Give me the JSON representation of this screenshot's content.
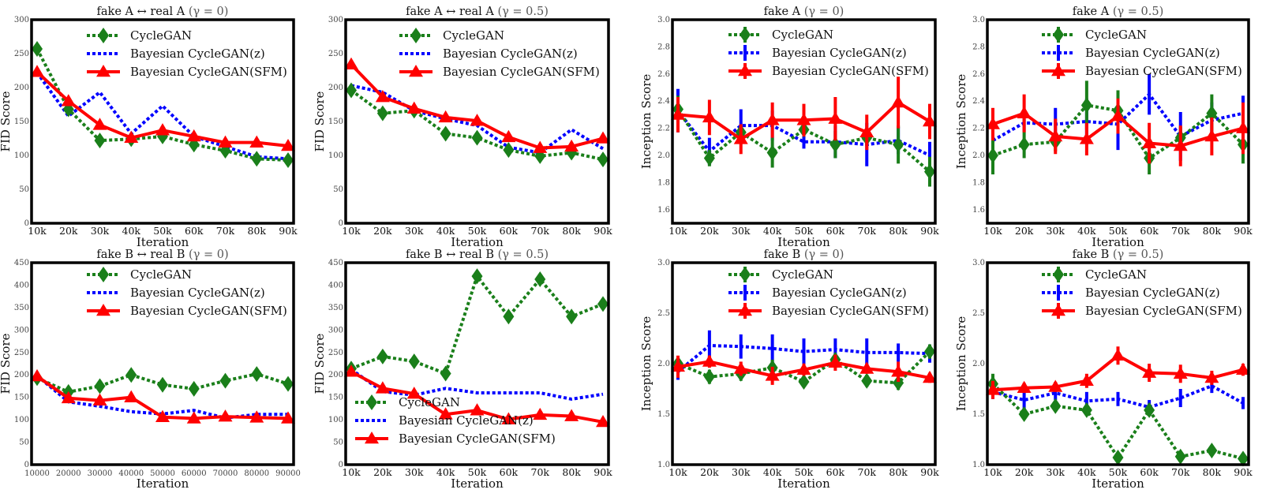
{
  "figure": {
    "series_styles": [
      {
        "name": "CycleGAN",
        "color": "#1a7f1a",
        "marker": "diamond",
        "line": "dotted"
      },
      {
        "name": "Bayesian CycleGAN(z)",
        "color": "#0000ff",
        "marker": "none",
        "line": "dotted"
      },
      {
        "name": "Bayesian CycleGAN(SFM)",
        "color": "#ff0000",
        "marker": "triangle",
        "line": "solid"
      }
    ]
  },
  "chart_data": [
    {
      "id": "fid-a-g0",
      "type": "line",
      "title": "fake A ↔ real A",
      "title_gamma": "(γ = 0)",
      "xlabel": "Iteration",
      "ylabel": "FID Score",
      "categories": [
        "10k",
        "20k",
        "30k",
        "40k",
        "50k",
        "60k",
        "70k",
        "80k",
        "90k"
      ],
      "ylim": [
        0,
        300
      ],
      "yticks": [
        0,
        50,
        100,
        150,
        200,
        250,
        300
      ],
      "ytick_labels": [
        "0",
        "50",
        "100",
        "150",
        "200",
        "250",
        "300"
      ],
      "legend": "top-right",
      "legend_labels": [
        "CycleGAN",
        "Bayesian CycleGAN(z)",
        "Bayesian CycleGAN(SFM)"
      ],
      "series": [
        {
          "name": "CycleGAN",
          "values": [
            257,
            168,
            122,
            124,
            128,
            116,
            107,
            95,
            93
          ]
        },
        {
          "name": "Bayesian CycleGAN(z)",
          "values": [
            222,
            158,
            193,
            132,
            173,
            128,
            113,
            98,
            95
          ]
        },
        {
          "name": "Bayesian CycleGAN(SFM)",
          "values": [
            223,
            180,
            145,
            126,
            137,
            128,
            119,
            119,
            114
          ]
        }
      ]
    },
    {
      "id": "fid-a-g05",
      "type": "line",
      "title": "fake A ↔ real A",
      "title_gamma": "(γ = 0.5)",
      "xlabel": "Iteration",
      "ylabel": "FID Score",
      "categories": [
        "10k",
        "20k",
        "30k",
        "40k",
        "50k",
        "60k",
        "70k",
        "80k",
        "90k"
      ],
      "ylim": [
        0,
        300
      ],
      "yticks": [
        0,
        50,
        100,
        150,
        200,
        250,
        300
      ],
      "ytick_labels": [
        "0",
        "50",
        "100",
        "150",
        "200",
        "250",
        "300"
      ],
      "legend": "top-right",
      "legend_labels": [
        "CycleGAN",
        "Bayesian CycleGAN(z)",
        "Bayesian CycleGAN(SFM)"
      ],
      "series": [
        {
          "name": "CycleGAN",
          "values": [
            196,
            162,
            166,
            132,
            126,
            108,
            99,
            104,
            94
          ]
        },
        {
          "name": "Bayesian CycleGAN(z)",
          "values": [
            203,
            193,
            166,
            154,
            144,
            112,
            104,
            138,
            110
          ]
        },
        {
          "name": "Bayesian CycleGAN(SFM)",
          "values": [
            234,
            186,
            169,
            156,
            151,
            127,
            111,
            113,
            125
          ]
        }
      ]
    },
    {
      "id": "is-a-g0",
      "type": "line",
      "title": "fake A",
      "title_gamma": "(γ = 0)",
      "xlabel": "Iteration",
      "ylabel": "Inception Score",
      "categories": [
        "10k",
        "20k",
        "30k",
        "40k",
        "50k",
        "60k",
        "70k",
        "80k",
        "90k"
      ],
      "ylim": [
        1.5,
        3.0
      ],
      "yticks": [
        1.6,
        1.8,
        2.0,
        2.2,
        2.4,
        2.6,
        2.8,
        3.0
      ],
      "ytick_labels": [
        "1.6",
        "1.8",
        "2.0",
        "2.2",
        "2.4",
        "2.6",
        "2.8",
        "3.0"
      ],
      "legend": "top-right",
      "legend_labels": [
        "CycleGAN",
        "Bayesian CycleGAN(z)",
        "Bayesian CycleGAN(SFM)"
      ],
      "series": [
        {
          "name": "CycleGAN",
          "values": [
            2.34,
            1.98,
            2.17,
            2.02,
            2.19,
            2.08,
            2.13,
            2.08,
            1.88
          ],
          "errors": [
            0.1,
            0.06,
            0.05,
            0.11,
            0.04,
            0.1,
            0.06,
            0.14,
            0.11
          ]
        },
        {
          "name": "Bayesian CycleGAN(z)",
          "values": [
            2.33,
            2.03,
            2.22,
            2.22,
            2.1,
            2.1,
            2.08,
            2.11,
            2.0
          ],
          "errors": [
            0.16,
            0.1,
            0.12,
            0.11,
            0.05,
            0.12,
            0.16,
            0.1,
            0.1
          ]
        },
        {
          "name": "Bayesian CycleGAN(SFM)",
          "values": [
            2.3,
            2.28,
            2.12,
            2.26,
            2.26,
            2.27,
            2.17,
            2.39,
            2.25
          ],
          "errors": [
            0.13,
            0.13,
            0.11,
            0.13,
            0.12,
            0.16,
            0.13,
            0.19,
            0.13
          ]
        }
      ]
    },
    {
      "id": "is-a-g05",
      "type": "line",
      "title": "fake A",
      "title_gamma": "(γ = 0.5)",
      "xlabel": "Iteration",
      "ylabel": "Inception Score",
      "categories": [
        "10k",
        "20k",
        "30k",
        "40k",
        "50k",
        "60k",
        "70k",
        "80k",
        "90k"
      ],
      "ylim": [
        1.5,
        3.0
      ],
      "yticks": [
        1.6,
        1.8,
        2.0,
        2.2,
        2.4,
        2.6,
        2.8,
        3.0
      ],
      "ytick_labels": [
        "1.6",
        "1.8",
        "2.0",
        "2.2",
        "2.4",
        "2.6",
        "2.8",
        "3.0"
      ],
      "legend": "top-right",
      "legend_labels": [
        "CycleGAN",
        "Bayesian CycleGAN(z)",
        "Bayesian CycleGAN(SFM)"
      ],
      "series": [
        {
          "name": "CycleGAN",
          "values": [
            2.0,
            2.08,
            2.1,
            2.37,
            2.33,
            1.98,
            2.13,
            2.31,
            2.08
          ],
          "errors": [
            0.14,
            0.1,
            0.07,
            0.18,
            0.15,
            0.12,
            0.08,
            0.14,
            0.14
          ]
        },
        {
          "name": "Bayesian CycleGAN(z)",
          "values": [
            2.11,
            2.24,
            2.23,
            2.25,
            2.23,
            2.45,
            2.14,
            2.26,
            2.31
          ],
          "errors": [
            0.11,
            0.06,
            0.12,
            0.17,
            0.19,
            0.15,
            0.18,
            0.13,
            0.13
          ]
        },
        {
          "name": "Bayesian CycleGAN(SFM)",
          "values": [
            2.23,
            2.31,
            2.14,
            2.12,
            2.29,
            2.09,
            2.07,
            2.14,
            2.2
          ],
          "errors": [
            0.12,
            0.14,
            0.13,
            0.12,
            0.13,
            0.15,
            0.15,
            0.14,
            0.19
          ]
        }
      ]
    },
    {
      "id": "fid-b-g0",
      "type": "line",
      "title": "fake B ↔ real B",
      "title_gamma": "(γ = 0)",
      "xlabel": "Iteration",
      "ylabel": "FID Score",
      "categories": [
        "10000",
        "20000",
        "30000",
        "40000",
        "50000",
        "60000",
        "70000",
        "80000",
        "90000"
      ],
      "ylim": [
        0,
        450
      ],
      "yticks": [
        0,
        50,
        100,
        150,
        200,
        250,
        300,
        350,
        400,
        450
      ],
      "ytick_labels": [
        "0",
        "50",
        "100",
        "150",
        "200",
        "250",
        "300",
        "350",
        "400",
        "450"
      ],
      "legend": "top-right",
      "legend_labels": [
        "CycleGAN",
        "Bayesian CycleGAN(z)",
        "Bayesian CycleGAN(SFM)"
      ],
      "series": [
        {
          "name": "CycleGAN",
          "values": [
            193,
            162,
            175,
            200,
            178,
            169,
            187,
            202,
            180
          ]
        },
        {
          "name": "Bayesian CycleGAN(z)",
          "values": [
            198,
            140,
            130,
            118,
            113,
            121,
            104,
            112,
            112
          ]
        },
        {
          "name": "Bayesian CycleGAN(SFM)",
          "values": [
            197,
            148,
            143,
            150,
            106,
            103,
            107,
            105,
            103
          ]
        }
      ]
    },
    {
      "id": "fid-b-g05",
      "type": "line",
      "title": "fake B ↔ real B",
      "title_gamma": "(γ = 0.5)",
      "xlabel": "Iteration",
      "ylabel": "FID Score",
      "categories": [
        "10k",
        "20k",
        "30k",
        "40k",
        "50k",
        "60k",
        "70k",
        "80k",
        "90k"
      ],
      "ylim": [
        0,
        450
      ],
      "yticks": [
        0,
        50,
        100,
        150,
        200,
        250,
        300,
        350,
        400,
        450
      ],
      "ytick_labels": [
        "0",
        "50",
        "100",
        "150",
        "200",
        "250",
        "300",
        "350",
        "400",
        "450"
      ],
      "legend": "bottom-left",
      "legend_labels": [
        "CycleGAN",
        "Bayesian CycleGAN(z)",
        "Bayesian CycleGAN(SFM)"
      ],
      "series": [
        {
          "name": "CycleGAN",
          "values": [
            214,
            241,
            230,
            203,
            420,
            330,
            413,
            330,
            358
          ]
        },
        {
          "name": "Bayesian CycleGAN(z)",
          "values": [
            212,
            163,
            155,
            170,
            160,
            160,
            160,
            146,
            157
          ]
        },
        {
          "name": "Bayesian CycleGAN(SFM)",
          "values": [
            207,
            170,
            158,
            112,
            121,
            101,
            111,
            108,
            95
          ]
        }
      ]
    },
    {
      "id": "is-b-g0",
      "type": "line",
      "title": "fake B",
      "title_gamma": "(γ = 0)",
      "xlabel": "Iteration",
      "ylabel": "Inception Score",
      "categories": [
        "10k",
        "20k",
        "30k",
        "40k",
        "50k",
        "60k",
        "70k",
        "80k",
        "90k"
      ],
      "ylim": [
        1.0,
        3.0
      ],
      "yticks": [
        1.0,
        1.5,
        2.0,
        2.5,
        3.0
      ],
      "ytick_labels": [
        "1.0",
        "1.5",
        "2.0",
        "2.5",
        "3.0"
      ],
      "legend": "top-right",
      "legend_labels": [
        "CycleGAN",
        "Bayesian CycleGAN(z)",
        "Bayesian CycleGAN(SFM)"
      ],
      "series": [
        {
          "name": "CycleGAN",
          "values": [
            2.0,
            1.87,
            1.9,
            1.96,
            1.82,
            2.04,
            1.83,
            1.81,
            2.12
          ],
          "errors": [
            0.07,
            0.07,
            0.07,
            0.08,
            0.05,
            0.06,
            0.06,
            0.07,
            0.07
          ]
        },
        {
          "name": "Bayesian CycleGAN(z)",
          "values": [
            1.92,
            2.18,
            2.17,
            2.15,
            2.12,
            2.14,
            2.11,
            2.11,
            2.1
          ],
          "errors": [
            0.08,
            0.15,
            0.12,
            0.14,
            0.13,
            0.11,
            0.14,
            0.09,
            0.09
          ]
        },
        {
          "name": "Bayesian CycleGAN(SFM)",
          "values": [
            1.97,
            2.02,
            1.95,
            1.88,
            1.94,
            2.01,
            1.95,
            1.92,
            1.86
          ],
          "errors": [
            0.11,
            0.06,
            0.07,
            0.09,
            0.06,
            0.08,
            0.05,
            0.1,
            0.05
          ]
        }
      ]
    },
    {
      "id": "is-b-g05",
      "type": "line",
      "title": "fake B",
      "title_gamma": "(γ = 0.5)",
      "xlabel": "Iteration",
      "ylabel": "Inception Score",
      "categories": [
        "10k",
        "20k",
        "30k",
        "40k",
        "50k",
        "60k",
        "70k",
        "80k",
        "90k"
      ],
      "ylim": [
        1.0,
        3.0
      ],
      "yticks": [
        1.0,
        1.5,
        2.0,
        2.5,
        3.0
      ],
      "ytick_labels": [
        "1.0",
        "1.5",
        "2.0",
        "2.5",
        "3.0"
      ],
      "legend": "top-right",
      "legend_labels": [
        "CycleGAN",
        "Bayesian CycleGAN(z)",
        "Bayesian CycleGAN(SFM)"
      ],
      "series": [
        {
          "name": "CycleGAN",
          "values": [
            1.8,
            1.5,
            1.58,
            1.54,
            1.07,
            1.54,
            1.08,
            1.14,
            1.06
          ],
          "errors": [
            0.1,
            0.05,
            0.05,
            0.05,
            0.04,
            0.06,
            0.04,
            0.04,
            0.04
          ]
        },
        {
          "name": "Bayesian CycleGAN(z)",
          "values": [
            1.72,
            1.64,
            1.71,
            1.63,
            1.65,
            1.57,
            1.66,
            1.78,
            1.61
          ],
          "errors": [
            0.07,
            0.1,
            0.07,
            0.09,
            0.07,
            0.07,
            0.09,
            0.07,
            0.06
          ]
        },
        {
          "name": "Bayesian CycleGAN(SFM)",
          "values": [
            1.74,
            1.76,
            1.77,
            1.83,
            2.08,
            1.91,
            1.9,
            1.86,
            1.94
          ],
          "errors": [
            0.09,
            0.05,
            0.05,
            0.07,
            0.09,
            0.09,
            0.09,
            0.07,
            0.06
          ]
        }
      ]
    }
  ]
}
